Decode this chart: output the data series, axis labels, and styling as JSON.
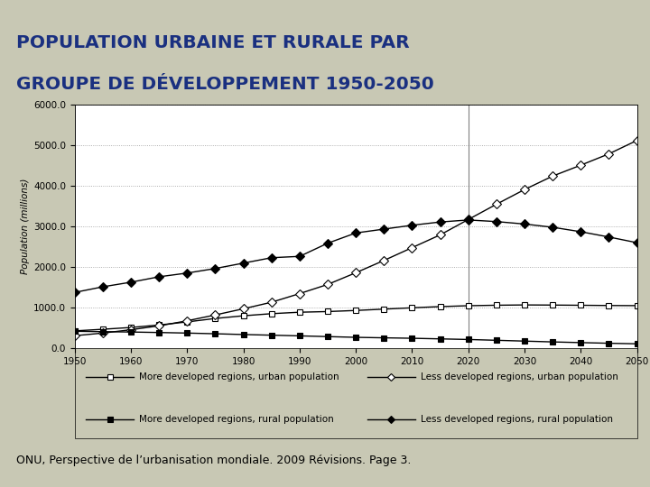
{
  "title_line1": "POPULATION URBAINE ET RURALE PAR",
  "title_line2": "GROUPE DE DÉVELOPPEMENT 1950-2050",
  "subtitle": "ONU, Perspective de l’urbanisation mondiale. 2009 Révisions. Page 3.",
  "ylabel": "Population (millions)",
  "background_color": "#c8c8b4",
  "plot_bg": "#ffffff",
  "title_color": "#1a3080",
  "years": [
    1950,
    1955,
    1960,
    1965,
    1970,
    1975,
    1980,
    1985,
    1990,
    1995,
    2000,
    2005,
    2010,
    2015,
    2020,
    2025,
    2030,
    2035,
    2040,
    2045,
    2050
  ],
  "more_dev_urban": [
    427,
    467,
    511,
    572,
    648,
    733,
    799,
    851,
    887,
    903,
    930,
    963,
    996,
    1025,
    1047,
    1059,
    1066,
    1063,
    1058,
    1052,
    1049
  ],
  "less_dev_urban": [
    308,
    373,
    456,
    551,
    676,
    820,
    972,
    1133,
    1346,
    1572,
    1860,
    2163,
    2478,
    2793,
    3172,
    3547,
    3910,
    4241,
    4510,
    4789,
    5120
  ],
  "more_dev_rural": [
    417,
    408,
    399,
    387,
    373,
    356,
    337,
    321,
    304,
    286,
    268,
    256,
    245,
    230,
    215,
    195,
    175,
    155,
    138,
    122,
    108
  ],
  "less_dev_rural": [
    1375,
    1513,
    1627,
    1760,
    1852,
    1964,
    2097,
    2230,
    2263,
    2588,
    2840,
    2935,
    3030,
    3110,
    3160,
    3120,
    3060,
    2980,
    2870,
    2740,
    2600
  ],
  "vline_x": 2020,
  "ylim": [
    0,
    6000
  ],
  "yticks": [
    0.0,
    1000.0,
    2000.0,
    3000.0,
    4000.0,
    5000.0,
    6000.0
  ],
  "xticks": [
    1950,
    1960,
    1970,
    1980,
    1990,
    2000,
    2010,
    2020,
    2030,
    2040,
    2050
  ],
  "legend_entries": [
    "More developed regions, urban population",
    "Less developed regions, urban population",
    "More developed regions, rural population",
    "Less developed regions, rural population"
  ]
}
